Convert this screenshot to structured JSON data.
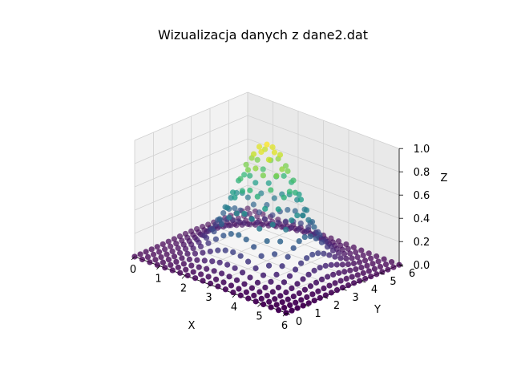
{
  "chart_data": {
    "type": "scatter3d",
    "title": "Wizualizacja danych z dane2.dat",
    "xlabel": "X",
    "ylabel": "Y",
    "zlabel": "Z",
    "xlim": [
      0,
      6
    ],
    "ylim": [
      0,
      6
    ],
    "zlim": [
      0,
      1
    ],
    "xticks": [
      "0",
      "1",
      "2",
      "3",
      "4",
      "5",
      "6"
    ],
    "yticks": [
      "0",
      "1",
      "2",
      "3",
      "4",
      "5",
      "6"
    ],
    "zticks": [
      "0.0",
      "0.2",
      "0.4",
      "0.6",
      "0.8",
      "1.0"
    ],
    "grid": true,
    "colormap": "viridis",
    "panes": {
      "color": "#f2f2f2",
      "grid_color": "#d0d0d0"
    },
    "surface": {
      "formula": "z = exp(-((x-3)^2 + (y-3)^2)/2)",
      "x_range": [
        0,
        6
      ],
      "y_range": [
        0,
        6
      ],
      "grid_points": 21
    }
  }
}
